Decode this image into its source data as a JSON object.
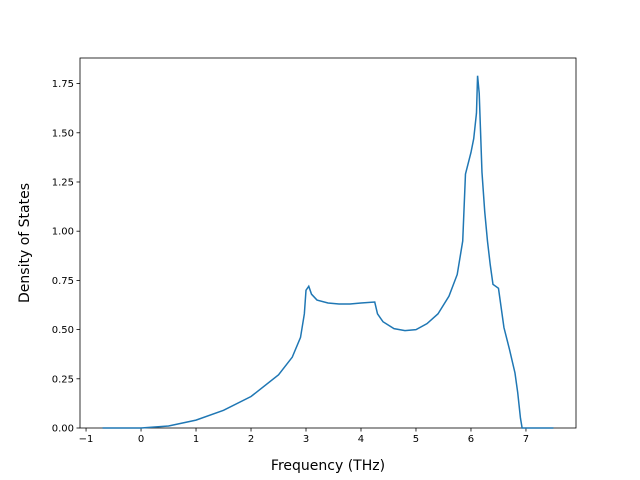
{
  "chart_data": {
    "type": "line",
    "xlabel": "Frequency (THz)",
    "ylabel": "Density of States",
    "x": [
      -0.7,
      0,
      0.5,
      1,
      1.5,
      2,
      2.5,
      2.75,
      2.9,
      2.97,
      3.0,
      3.05,
      3.1,
      3.2,
      3.4,
      3.6,
      3.8,
      4.0,
      4.25,
      4.3,
      4.4,
      4.6,
      4.8,
      5.0,
      5.2,
      5.4,
      5.6,
      5.75,
      5.85,
      5.9,
      6.0,
      6.05,
      6.1,
      6.12,
      6.15,
      6.2,
      6.25,
      6.3,
      6.35,
      6.4,
      6.5,
      6.6,
      6.7,
      6.8,
      6.85,
      6.9,
      6.93,
      7.5
    ],
    "series": [
      {
        "color": "#1f77b4",
        "values": [
          0,
          0,
          0.01,
          0.04,
          0.09,
          0.16,
          0.27,
          0.36,
          0.46,
          0.58,
          0.7,
          0.72,
          0.68,
          0.65,
          0.635,
          0.63,
          0.63,
          0.635,
          0.64,
          0.58,
          0.54,
          0.505,
          0.495,
          0.5,
          0.53,
          0.58,
          0.67,
          0.78,
          0.95,
          1.29,
          1.4,
          1.47,
          1.6,
          1.79,
          1.7,
          1.3,
          1.1,
          0.95,
          0.83,
          0.73,
          0.71,
          0.51,
          0.4,
          0.28,
          0.18,
          0.05,
          0,
          0
        ]
      }
    ],
    "xlim": [
      -1.11,
      7.91
    ],
    "ylim": [
      0,
      1.88
    ],
    "xticks": [
      {
        "value": -1,
        "label": "−1"
      },
      0,
      1,
      2,
      3,
      4,
      5,
      6,
      7
    ],
    "yticks": [
      {
        "value": 0,
        "label": "0.00"
      },
      {
        "value": 0.25,
        "label": "0.25"
      },
      {
        "value": 0.5,
        "label": "0.50"
      },
      {
        "value": 0.75,
        "label": "0.75"
      },
      {
        "value": 1,
        "label": "1.00"
      },
      {
        "value": 1.25,
        "label": "1.25"
      },
      {
        "value": 1.5,
        "label": "1.50"
      },
      {
        "value": 1.75,
        "label": "1.75"
      }
    ]
  }
}
